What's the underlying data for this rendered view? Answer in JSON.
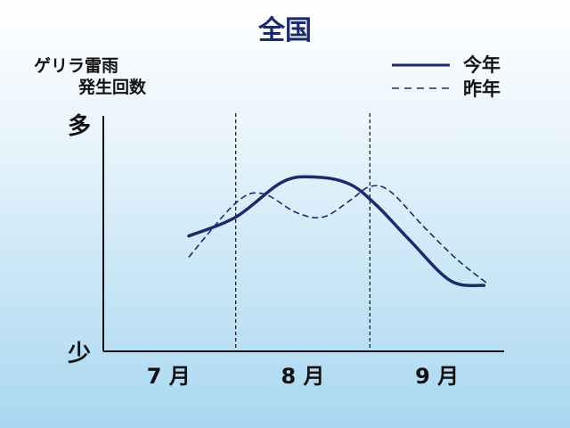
{
  "colors": {
    "line": "#1c2a6b",
    "title": "#1c2a6b",
    "axis": "#111111"
  },
  "chart_data": {
    "type": "line",
    "title": "全国",
    "ylabel_line1": "ゲリラ雷雨",
    "ylabel_line2": "発生回数",
    "ytick_top": "多",
    "ytick_bottom": "少",
    "x_categories": [
      "7 月",
      "8 月",
      "9 月"
    ],
    "x_range": [
      0,
      3
    ],
    "y_range": [
      0,
      10
    ],
    "grid": false,
    "legend_position": "top-right",
    "series": [
      {
        "name": "今年",
        "style": "solid",
        "x": [
          0.65,
          1.0,
          1.35,
          1.6,
          1.85,
          2.05,
          2.3,
          2.6,
          2.85
        ],
        "y": [
          4.9,
          5.7,
          7.2,
          7.4,
          7.1,
          6.2,
          4.7,
          3.0,
          2.8
        ]
      },
      {
        "name": "昨年",
        "style": "dashed",
        "x": [
          0.65,
          1.0,
          1.2,
          1.45,
          1.65,
          1.85,
          2.0,
          2.15,
          2.4,
          2.65,
          2.87
        ],
        "y": [
          4.0,
          6.3,
          6.7,
          5.9,
          5.7,
          6.4,
          7.0,
          6.8,
          5.3,
          3.9,
          2.9
        ]
      }
    ],
    "vertical_dividers_x": [
      1,
      2
    ]
  }
}
